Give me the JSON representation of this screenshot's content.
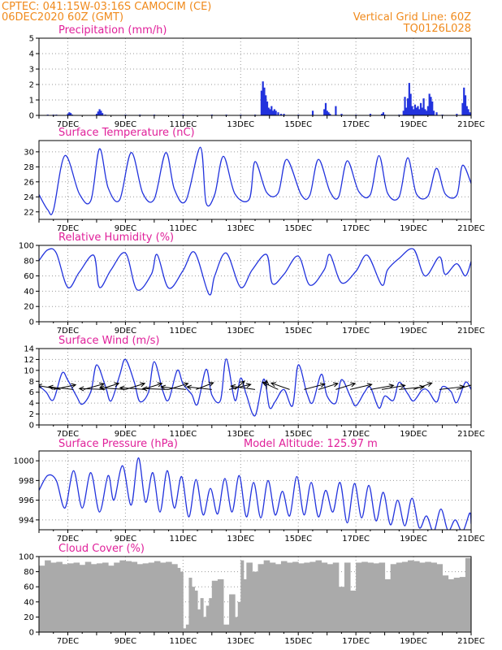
{
  "header": {
    "line1": "CPTEC:   041:15W-03:16S   CAMOCIM (CE)",
    "line2": "06DEC2020 60Z (GMT)",
    "right1": "Vertical Grid Line: 60Z",
    "right2": "TQ0126L028"
  },
  "colors": {
    "header": "#f08a1c",
    "title": "#e0209a",
    "series": "#2233dd",
    "cloud": "#aaaaaa"
  },
  "chart_data": [
    {
      "type": "bar",
      "title": "Precipitation (mm/h)",
      "ylim": [
        0,
        5
      ],
      "yticks": [
        0,
        1,
        2,
        3,
        4,
        5
      ],
      "xticks": [
        "7DEC",
        "9DEC",
        "11DEC",
        "13DEC",
        "15DEC",
        "17DEC",
        "19DEC",
        "21DEC"
      ],
      "x_days": [
        6.3,
        6.5,
        6.6,
        7.0,
        7.05,
        7.1,
        7.15,
        8.0,
        8.05,
        8.1,
        8.15,
        8.2,
        8.3,
        9.0,
        9.5,
        10.0,
        11.0,
        12.0,
        12.5,
        13.0,
        13.5,
        13.72,
        13.77,
        13.82,
        13.87,
        13.92,
        13.97,
        14.02,
        14.07,
        14.12,
        14.17,
        14.22,
        14.3,
        14.4,
        14.5,
        15.0,
        15.5,
        15.9,
        15.95,
        16.0,
        16.05,
        16.1,
        16.3,
        16.5,
        17.0,
        17.5,
        17.9,
        17.95,
        18.0,
        18.5,
        18.65,
        18.7,
        18.75,
        18.8,
        18.85,
        18.9,
        18.95,
        19.0,
        19.05,
        19.1,
        19.15,
        19.2,
        19.25,
        19.3,
        19.35,
        19.4,
        19.45,
        19.5,
        19.55,
        19.6,
        19.65,
        19.7,
        19.8,
        20.0,
        20.5,
        20.7,
        20.75,
        20.8,
        20.85,
        20.9,
        20.95,
        21.0
      ],
      "values": [
        0.05,
        0.05,
        0.05,
        0.1,
        0.2,
        0.15,
        0.05,
        0.1,
        0.25,
        0.4,
        0.3,
        0.15,
        0.05,
        0.05,
        0.05,
        0.05,
        0.05,
        0.05,
        0.05,
        0.05,
        0.05,
        1.6,
        2.2,
        1.8,
        1.3,
        0.9,
        0.5,
        0.4,
        0.6,
        0.3,
        0.4,
        0.3,
        0.2,
        0.1,
        0.1,
        0.05,
        0.3,
        0.4,
        0.8,
        0.3,
        0.2,
        0.1,
        0.6,
        0.1,
        0.05,
        0.1,
        0.1,
        0.2,
        0.05,
        0.05,
        0.3,
        1.2,
        0.5,
        1.1,
        2.1,
        1.4,
        0.6,
        0.4,
        0.7,
        0.5,
        0.6,
        0.4,
        0.8,
        0.5,
        1.1,
        0.4,
        0.3,
        0.6,
        1.4,
        1.2,
        0.9,
        0.3,
        0.2,
        0.05,
        0.1,
        0.8,
        1.8,
        1.3,
        0.6,
        0.4,
        0.2,
        0.1
      ]
    },
    {
      "type": "line",
      "title": "Surface Temperature (nC)",
      "ylim": [
        21,
        31.5
      ],
      "yticks": [
        22,
        24,
        26,
        28,
        30
      ],
      "xticks": [
        "7DEC",
        "9DEC",
        "11DEC",
        "13DEC",
        "15DEC",
        "17DEC",
        "19DEC",
        "21DEC"
      ],
      "x_days": [
        6.0,
        6.3,
        6.5,
        6.9,
        7.4,
        7.8,
        8.1,
        8.4,
        8.8,
        9.2,
        9.6,
        10.0,
        10.4,
        10.7,
        11.1,
        11.6,
        11.8,
        12.1,
        12.4,
        12.8,
        13.3,
        13.5,
        13.9,
        14.3,
        14.6,
        15.1,
        15.4,
        15.7,
        16.1,
        16.4,
        16.7,
        17.1,
        17.5,
        17.8,
        18.1,
        18.5,
        18.8,
        19.1,
        19.5,
        19.8,
        20.1,
        20.5,
        20.7,
        21.0
      ],
      "values": [
        24.3,
        22.3,
        22.2,
        29.5,
        24.4,
        23.5,
        30.4,
        25.2,
        23.6,
        29.9,
        24.5,
        23.7,
        29.9,
        25.0,
        23.5,
        30.6,
        23.2,
        24.3,
        29.4,
        24.4,
        23.7,
        28.7,
        24.6,
        24.5,
        29.0,
        24.3,
        24.2,
        29.0,
        24.7,
        24.0,
        28.8,
        24.7,
        24.3,
        29.5,
        24.5,
        24.0,
        29.2,
        24.4,
        24.1,
        27.8,
        24.4,
        24.2,
        28.2,
        25.8
      ]
    },
    {
      "type": "line",
      "title": "Relative Humidity (%)",
      "ylim": [
        0,
        100
      ],
      "yticks": [
        0,
        20,
        40,
        60,
        80,
        100
      ],
      "xticks": [
        "7DEC",
        "9DEC",
        "11DEC",
        "13DEC",
        "15DEC",
        "17DEC",
        "19DEC",
        "21DEC"
      ],
      "x_days": [
        6.0,
        6.3,
        6.6,
        7.0,
        7.4,
        7.9,
        8.1,
        8.5,
        9.0,
        9.4,
        9.9,
        10.1,
        10.5,
        11.0,
        11.4,
        11.9,
        12.1,
        12.5,
        13.0,
        13.4,
        13.9,
        14.1,
        14.5,
        15.0,
        15.4,
        15.9,
        16.1,
        16.5,
        17.0,
        17.4,
        17.9,
        18.1,
        18.5,
        19.0,
        19.4,
        19.9,
        20.1,
        20.5,
        20.8,
        21.0
      ],
      "values": [
        80,
        94,
        90,
        45,
        65,
        87,
        45,
        68,
        90,
        42,
        62,
        88,
        44,
        67,
        91,
        36,
        60,
        90,
        45,
        68,
        88,
        50,
        62,
        86,
        48,
        68,
        88,
        51,
        66,
        87,
        48,
        68,
        83,
        95,
        60,
        85,
        62,
        76,
        60,
        79
      ]
    },
    {
      "type": "line",
      "title": "Surface Wind (m/s)",
      "ylim": [
        0,
        14
      ],
      "yticks": [
        0,
        2,
        4,
        6,
        8,
        10,
        12,
        14
      ],
      "xticks": [
        "7DEC",
        "9DEC",
        "11DEC",
        "13DEC",
        "15DEC",
        "17DEC",
        "19DEC",
        "21DEC"
      ],
      "x_days": [
        6.0,
        6.25,
        6.5,
        6.8,
        7.0,
        7.3,
        7.5,
        7.8,
        8.0,
        8.3,
        8.5,
        8.8,
        9.0,
        9.3,
        9.5,
        9.8,
        10.0,
        10.3,
        10.5,
        10.8,
        11.0,
        11.3,
        11.5,
        11.8,
        12.0,
        12.3,
        12.5,
        12.8,
        13.0,
        13.2,
        13.5,
        13.8,
        14.0,
        14.2,
        14.5,
        14.8,
        15.0,
        15.3,
        15.5,
        15.8,
        16.0,
        16.3,
        16.5,
        16.8,
        17.0,
        17.3,
        17.5,
        17.8,
        18.0,
        18.3,
        18.5,
        18.8,
        19.0,
        19.3,
        19.5,
        19.8,
        20.0,
        20.3,
        20.5,
        20.8,
        21.0
      ],
      "values": [
        7.2,
        6.0,
        4.6,
        9.5,
        8.2,
        5.3,
        3.8,
        6.1,
        11.0,
        7.2,
        4.4,
        9.1,
        12.0,
        8.0,
        4.3,
        6.0,
        11.6,
        6.2,
        4.6,
        10.0,
        7.5,
        5.6,
        3.8,
        10.2,
        5.5,
        4.5,
        12.1,
        4.5,
        8.6,
        5.5,
        1.7,
        8.4,
        3.2,
        4.3,
        6.5,
        3.5,
        11.0,
        5.8,
        4.1,
        9.3,
        5.3,
        4.0,
        8.3,
        5.3,
        3.5,
        6.0,
        6.9,
        3.1,
        5.3,
        4.5,
        7.8,
        5.7,
        4.4,
        6.4,
        6.3,
        4.2,
        7.0,
        6.1,
        4.1,
        7.8,
        6.5
      ],
      "arrows": [
        {
          "x_day": 6.75,
          "u": -1.0,
          "v": 0.5
        },
        {
          "x_day": 6.5,
          "u": 1.0,
          "v": 0.6
        },
        {
          "x_day": 7.2,
          "u": -1.0,
          "v": 0.3
        },
        {
          "x_day": 7.55,
          "u": 1.0,
          "v": 0.8
        },
        {
          "x_day": 8.3,
          "u": -1.0,
          "v": 0.1
        },
        {
          "x_day": 8.1,
          "u": 1.0,
          "v": 0.9
        },
        {
          "x_day": 9.0,
          "u": -1.0,
          "v": 0.2
        },
        {
          "x_day": 9.0,
          "u": 1.0,
          "v": 0.9
        },
        {
          "x_day": 9.7,
          "u": -1.0,
          "v": 0.2
        },
        {
          "x_day": 9.6,
          "u": 1.0,
          "v": 0.9
        },
        {
          "x_day": 10.5,
          "u": -1.0,
          "v": 0.1
        },
        {
          "x_day": 10.5,
          "u": 0.9,
          "v": 0.8
        },
        {
          "x_day": 11.1,
          "u": -1.0,
          "v": 0.3
        },
        {
          "x_day": 11.45,
          "u": 0.9,
          "v": 1.0
        },
        {
          "x_day": 12.0,
          "u": -1.0,
          "v": 0.3
        },
        {
          "x_day": 12.6,
          "u": 0.9,
          "v": 0.6
        },
        {
          "x_day": 12.8,
          "u": 0.4,
          "v": 1.0
        },
        {
          "x_day": 13.5,
          "u": -1.0,
          "v": 0.4
        },
        {
          "x_day": 13.9,
          "u": 0.0,
          "v": 1.0
        },
        {
          "x_day": 14.3,
          "u": -0.6,
          "v": 0.8
        },
        {
          "x_day": 14.7,
          "u": -0.6,
          "v": 0.6
        },
        {
          "x_day": 15.2,
          "u": 0.8,
          "v": 0.6
        },
        {
          "x_day": 15.7,
          "u": 0.9,
          "v": 0.8
        },
        {
          "x_day": 16.3,
          "u": 0.9,
          "v": 0.8
        },
        {
          "x_day": 16.8,
          "u": 0.9,
          "v": 0.6
        },
        {
          "x_day": 17.5,
          "u": 0.8,
          "v": 0.4
        },
        {
          "x_day": 17.9,
          "u": 1.0,
          "v": 0.5
        },
        {
          "x_day": 18.5,
          "u": 1.0,
          "v": 0.3
        },
        {
          "x_day": 19.0,
          "u": 0.7,
          "v": 0.7
        },
        {
          "x_day": 19.9,
          "u": 0.9,
          "v": 0.3
        },
        {
          "x_day": 20.5,
          "u": 0.8,
          "v": 0.7
        }
      ]
    },
    {
      "type": "line",
      "title": "Surface Pressure (hPa)",
      "annotation": "Model Altitude: 125.97 m",
      "ylim": [
        993,
        1001
      ],
      "yticks": [
        994,
        996,
        998,
        1000
      ],
      "xticks": [
        "7DEC",
        "9DEC",
        "11DEC",
        "13DEC",
        "15DEC",
        "17DEC",
        "19DEC",
        "21DEC"
      ],
      "x_days": [
        6.0,
        6.3,
        6.6,
        6.9,
        7.2,
        7.5,
        7.8,
        8.1,
        8.4,
        8.6,
        8.9,
        9.2,
        9.45,
        9.7,
        9.95,
        10.2,
        10.45,
        10.7,
        10.95,
        11.2,
        11.45,
        11.7,
        11.95,
        12.2,
        12.45,
        12.7,
        12.95,
        13.2,
        13.45,
        13.7,
        13.95,
        14.2,
        14.45,
        14.7,
        14.95,
        15.2,
        15.45,
        15.7,
        15.95,
        16.2,
        16.45,
        16.7,
        16.95,
        17.2,
        17.45,
        17.7,
        17.95,
        18.2,
        18.45,
        18.7,
        18.95,
        19.2,
        19.45,
        19.7,
        19.95,
        20.2,
        20.45,
        20.7,
        20.95,
        21.0
      ],
      "values": [
        997.0,
        998.5,
        998.0,
        995.2,
        999.0,
        995.2,
        998.8,
        994.8,
        998.5,
        996.0,
        999.5,
        995.5,
        1000.3,
        995.8,
        998.8,
        994.8,
        999.0,
        995.2,
        998.4,
        994.3,
        998.1,
        994.5,
        997.2,
        994.6,
        998.2,
        994.8,
        998.5,
        994.3,
        997.8,
        994.2,
        998.0,
        994.5,
        996.9,
        994.4,
        998.4,
        994.5,
        997.8,
        994.3,
        997.0,
        994.8,
        997.8,
        993.7,
        997.7,
        994.2,
        997.5,
        993.9,
        996.8,
        993.5,
        996.0,
        993.4,
        996.2,
        993.2,
        994.4,
        992.8,
        995.1,
        992.9,
        994.0,
        992.8,
        994.7,
        993.6
      ]
    },
    {
      "type": "area",
      "title": "Cloud Cover (%)",
      "ylim": [
        0,
        100
      ],
      "yticks": [
        0,
        20,
        40,
        60,
        80,
        100
      ],
      "xticks": [
        "7DEC",
        "9DEC",
        "11DEC",
        "13DEC",
        "15DEC",
        "17DEC",
        "19DEC",
        "21DEC"
      ],
      "x_days": [
        6.0,
        6.2,
        6.4,
        6.6,
        6.8,
        7.0,
        7.2,
        7.4,
        7.6,
        7.8,
        8.0,
        8.2,
        8.4,
        8.6,
        8.8,
        9.0,
        9.2,
        9.4,
        9.6,
        9.8,
        10.0,
        10.2,
        10.4,
        10.6,
        10.8,
        10.9,
        11.0,
        11.1,
        11.2,
        11.3,
        11.4,
        11.5,
        11.6,
        11.7,
        11.8,
        11.9,
        12.0,
        12.2,
        12.4,
        12.6,
        12.8,
        12.9,
        13.0,
        13.1,
        13.2,
        13.4,
        13.6,
        13.8,
        14.0,
        14.2,
        14.4,
        14.6,
        14.8,
        15.0,
        15.2,
        15.4,
        15.6,
        15.8,
        16.0,
        16.2,
        16.4,
        16.6,
        16.8,
        17.0,
        17.2,
        17.4,
        17.6,
        17.8,
        18.0,
        18.2,
        18.4,
        18.6,
        18.8,
        19.0,
        19.2,
        19.4,
        19.6,
        19.8,
        20.0,
        20.2,
        20.4,
        20.6,
        20.8,
        21.0
      ],
      "values": [
        88,
        95,
        92,
        93,
        90,
        91,
        92,
        89,
        93,
        90,
        91,
        92,
        88,
        92,
        95,
        94,
        93,
        90,
        91,
        92,
        94,
        92,
        93,
        90,
        85,
        80,
        5,
        10,
        72,
        60,
        55,
        30,
        45,
        20,
        35,
        45,
        68,
        70,
        10,
        50,
        20,
        40,
        95,
        70,
        92,
        80,
        90,
        95,
        92,
        90,
        94,
        92,
        93,
        91,
        92,
        93,
        95,
        92,
        90,
        92,
        60,
        92,
        55,
        92,
        93,
        92,
        91,
        92,
        70,
        90,
        92,
        93,
        95,
        94,
        92,
        93,
        92,
        90,
        75,
        70,
        72,
        73,
        98,
        95
      ]
    }
  ]
}
